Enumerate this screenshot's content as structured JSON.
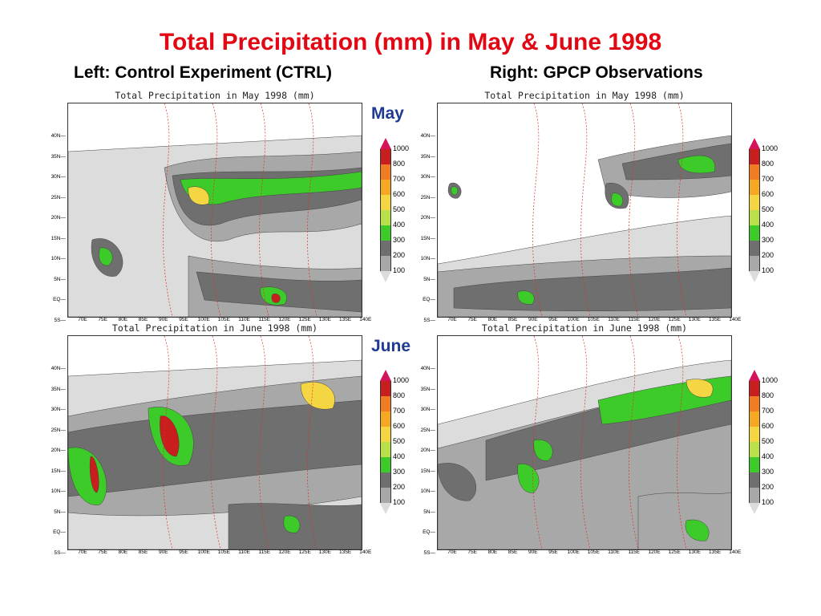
{
  "header": {
    "title": "Total Precipitation (mm) in May & June 1998",
    "left_subtitle": "Left: Control Experiment (CTRL)",
    "right_subtitle": "Right: GPCP Observations"
  },
  "row_labels": {
    "may": "May",
    "june": "June"
  },
  "axes": {
    "lat_labels": [
      "40N",
      "35N",
      "30N",
      "25N",
      "20N",
      "15N",
      "10N",
      "5N",
      "EQ",
      "5S"
    ],
    "lon_labels": [
      "70E",
      "75E",
      "80E",
      "85E",
      "90E",
      "95E",
      "100E",
      "105E",
      "110E",
      "115E",
      "120E",
      "125E",
      "130E",
      "135E",
      "140E"
    ]
  },
  "colorbar": {
    "levels": [
      "1000",
      "800",
      "700",
      "600",
      "500",
      "400",
      "300",
      "200",
      "100"
    ],
    "colors": [
      "#d4145a",
      "#c81e1e",
      "#f07c24",
      "#f6a823",
      "#f4d642",
      "#b8e04a",
      "#3ccb28",
      "#6f6f6f",
      "#a8a8a8",
      "#dcdcdc"
    ]
  },
  "panels": {
    "ctrl_may": {
      "title": "Total Precipitation in May 1998 (mm)"
    },
    "gpcp_may": {
      "title": "Total Precipitation in May 1998 (mm)"
    },
    "ctrl_june": {
      "title": "Total Precipitation in June 1998 (mm)"
    },
    "gpcp_june": {
      "title": "Total Precipitation in June 1998 (mm)"
    }
  }
}
